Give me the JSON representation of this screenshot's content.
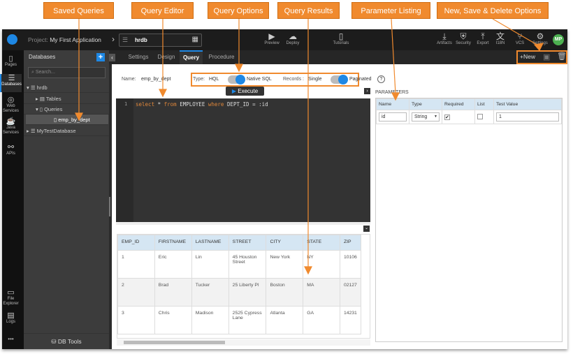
{
  "callouts": {
    "saved_queries": "Saved Queries",
    "query_editor": "Query Editor",
    "query_options": "Query Options",
    "query_results": "Query Results",
    "parameter_listing": "Parameter Listing",
    "new_save_delete": "New, Save & Delete Options"
  },
  "accent": "#f08a2e",
  "topbar": {
    "project_label": "Project:",
    "project_name": "My First Application",
    "db_selector": "hrdb",
    "tools": [
      {
        "label": "Preview",
        "icon": "play-icon"
      },
      {
        "label": "Deploy",
        "icon": "cloud-upload-icon"
      },
      {
        "label": "Tutorials",
        "icon": "book-icon"
      },
      {
        "label": "Artifacts",
        "icon": "download-icon"
      },
      {
        "label": "Security",
        "icon": "shield-icon"
      },
      {
        "label": "Export",
        "icon": "upload-icon"
      },
      {
        "label": "I18N",
        "icon": "translate-icon"
      },
      {
        "label": "VCS",
        "icon": "branch-icon"
      },
      {
        "label": "Settings",
        "icon": "gear-icon"
      }
    ],
    "avatar": "MP"
  },
  "rail": {
    "items": [
      "Pages",
      "Databases",
      "Web Services",
      "Java Services",
      "APIs",
      "File Explorer",
      "Logs"
    ],
    "more": "•••"
  },
  "sidebar": {
    "title": "Databases",
    "add": "+",
    "search_placeholder": "Search...",
    "tree": [
      "hrdb",
      "Tables",
      "Queries",
      "emp_by_dept",
      "MyTestDatabase"
    ],
    "db_tools": "DB Tools"
  },
  "tabs": [
    "Settings",
    "Design",
    "Query",
    "Procedure"
  ],
  "actions": {
    "new": "+New",
    "save": "save-icon",
    "delete": "trash-icon"
  },
  "query": {
    "name_label": "Name:",
    "name": "emp_by_dept",
    "type_label": "Type:",
    "type_off": "HQL",
    "type_on": "Native SQL",
    "records_label": "Records :",
    "records_off": "Single",
    "records_on": "Paginated",
    "help": "?",
    "execute": "Execute"
  },
  "editor": {
    "line": "1",
    "code": [
      {
        "t": "select",
        "k": true
      },
      {
        "t": " * ",
        "k": false
      },
      {
        "t": "from",
        "k": true
      },
      {
        "t": " EMPLOYEE ",
        "k": false
      },
      {
        "t": "where",
        "k": true
      },
      {
        "t": " DEPT_ID = :id",
        "k": false
      }
    ]
  },
  "results": {
    "columns": [
      "EMP_ID",
      "FIRSTNAME",
      "LASTNAME",
      "STREET",
      "CITY",
      "STATE",
      "ZIP"
    ],
    "rows": [
      [
        "1",
        "Eric",
        "Lin",
        "45 Houston Street",
        "New York",
        "NY",
        "10106"
      ],
      [
        "2",
        "Brad",
        "Tucker",
        "25 Liberty Pl",
        "Boston",
        "MA",
        "02127"
      ],
      [
        "3",
        "Chris",
        "Madison",
        "2525 Cypress Lane",
        "Atlanta",
        "GA",
        "14231"
      ]
    ]
  },
  "parameters": {
    "title": "PARAMETERS",
    "columns": [
      "Name",
      "Type",
      "Required",
      "List",
      "Test Value"
    ],
    "row": {
      "name": "id",
      "type": "String",
      "required": true,
      "list": false,
      "test_value": "1"
    }
  }
}
